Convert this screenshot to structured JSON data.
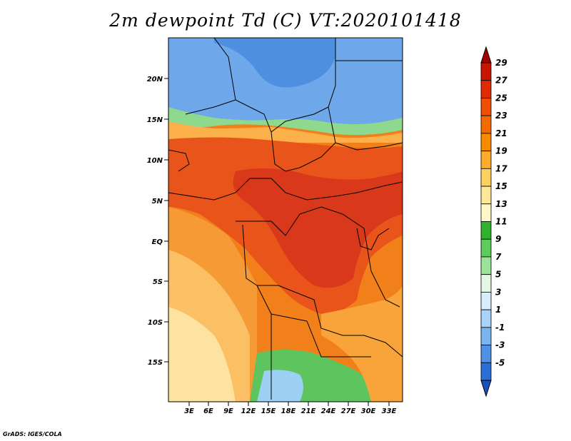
{
  "title": "2m dewpoint Td (C) VT:2020101418",
  "credit": "GrADS: IGES/COLA",
  "lat_labels": [
    "20N",
    "15N",
    "10N",
    "5N",
    "EQ",
    "5S",
    "10S",
    "15S"
  ],
  "lon_labels": [
    "3E",
    "6E",
    "9E",
    "12E",
    "15E",
    "18E",
    "21E",
    "24E",
    "27E",
    "30E",
    "33E"
  ],
  "colorbar": {
    "labels": [
      "29",
      "27",
      "25",
      "23",
      "21",
      "19",
      "17",
      "15",
      "13",
      "11",
      "9",
      "7",
      "5",
      "3",
      "1",
      "-1",
      "-3",
      "-5"
    ],
    "colors": [
      "#a50000",
      "#c81400",
      "#e02a00",
      "#ef4f00",
      "#f56a00",
      "#f98a00",
      "#fbab2d",
      "#fdd15f",
      "#fde89a",
      "#fef7c8",
      "#2fb32f",
      "#5dcc5d",
      "#9be39b",
      "#e4f7e4",
      "#d9ecfb",
      "#a9d3f8",
      "#7ab5f0",
      "#4f91e4",
      "#2a6fd6",
      "#1a50c0"
    ]
  },
  "map_colors": {
    "deep_red": "#d93a12",
    "red_orange": "#ea5a14",
    "orange": "#f2801a",
    "light_orange": "#f8a43a",
    "yellow": "#fcd27a",
    "pale_yellow": "#fde9a8",
    "green": "#4fbf4f",
    "light_green": "#a6e2a6",
    "light_blue": "#8ec3f1",
    "blue": "#5a9ae6"
  }
}
